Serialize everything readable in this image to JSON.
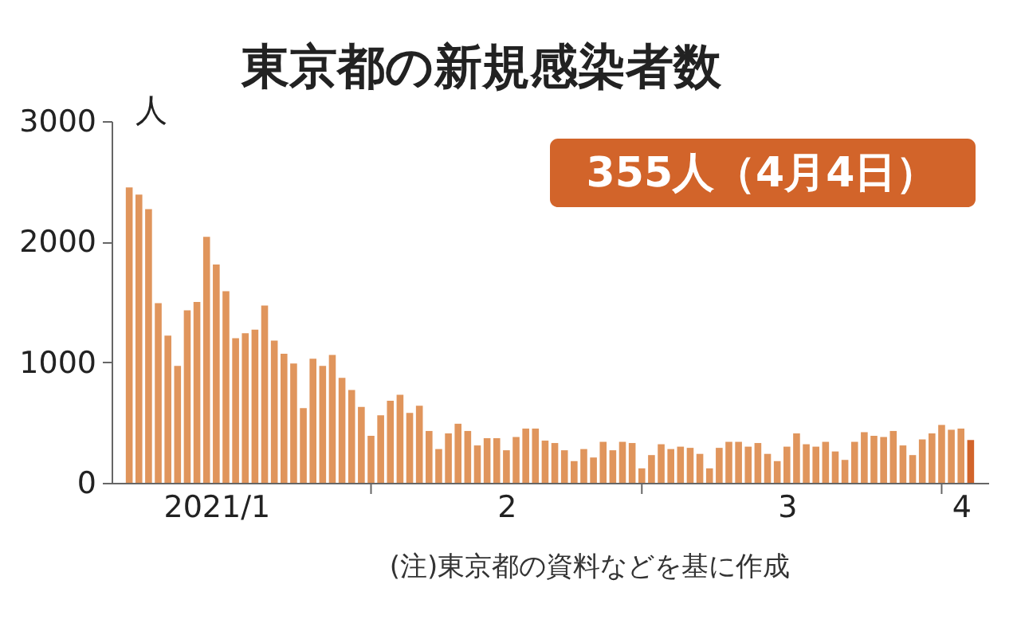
{
  "chart_data": {
    "type": "bar",
    "title": "東京都の新規感染者数",
    "ylabel": "人",
    "x": [
      "2021-01-07",
      "2021-01-08",
      "2021-01-09",
      "2021-01-10",
      "2021-01-11",
      "2021-01-12",
      "2021-01-13",
      "2021-01-14",
      "2021-01-15",
      "2021-01-16",
      "2021-01-17",
      "2021-01-18",
      "2021-01-19",
      "2021-01-20",
      "2021-01-21",
      "2021-01-22",
      "2021-01-23",
      "2021-01-24",
      "2021-01-25",
      "2021-01-26",
      "2021-01-27",
      "2021-01-28",
      "2021-01-29",
      "2021-01-30",
      "2021-01-31",
      "2021-02-01",
      "2021-02-02",
      "2021-02-03",
      "2021-02-04",
      "2021-02-05",
      "2021-02-06",
      "2021-02-07",
      "2021-02-08",
      "2021-02-09",
      "2021-02-10",
      "2021-02-11",
      "2021-02-12",
      "2021-02-13",
      "2021-02-14",
      "2021-02-15",
      "2021-02-16",
      "2021-02-17",
      "2021-02-18",
      "2021-02-19",
      "2021-02-20",
      "2021-02-21",
      "2021-02-22",
      "2021-02-23",
      "2021-02-24",
      "2021-02-25",
      "2021-02-26",
      "2021-02-27",
      "2021-02-28",
      "2021-03-01",
      "2021-03-02",
      "2021-03-03",
      "2021-03-04",
      "2021-03-05",
      "2021-03-06",
      "2021-03-07",
      "2021-03-08",
      "2021-03-09",
      "2021-03-10",
      "2021-03-11",
      "2021-03-12",
      "2021-03-13",
      "2021-03-14",
      "2021-03-15",
      "2021-03-16",
      "2021-03-17",
      "2021-03-18",
      "2021-03-19",
      "2021-03-20",
      "2021-03-21",
      "2021-03-22",
      "2021-03-23",
      "2021-03-24",
      "2021-03-25",
      "2021-03-26",
      "2021-03-27",
      "2021-03-28",
      "2021-03-29",
      "2021-03-30",
      "2021-03-31",
      "2021-04-01",
      "2021-04-02",
      "2021-04-03",
      "2021-04-04"
    ],
    "values": [
      2450,
      2390,
      2270,
      1490,
      1220,
      970,
      1430,
      1500,
      2040,
      1810,
      1590,
      1200,
      1240,
      1270,
      1470,
      1180,
      1070,
      990,
      620,
      1030,
      970,
      1060,
      870,
      770,
      630,
      390,
      560,
      680,
      730,
      580,
      640,
      430,
      280,
      410,
      490,
      430,
      310,
      370,
      370,
      270,
      380,
      450,
      450,
      350,
      330,
      270,
      180,
      280,
      210,
      340,
      270,
      340,
      330,
      120,
      230,
      320,
      280,
      300,
      290,
      240,
      120,
      290,
      340,
      340,
      300,
      330,
      240,
      180,
      300,
      410,
      320,
      300,
      340,
      260,
      190,
      340,
      420,
      390,
      380,
      430,
      310,
      230,
      360,
      410,
      480,
      440,
      450,
      355
    ],
    "colors": [
      "#e0955c",
      "#e0955c",
      "#e0955c",
      "#e0955c",
      "#e0955c",
      "#e0955c",
      "#e0955c",
      "#e0955c",
      "#e0955c",
      "#e0955c",
      "#e0955c",
      "#e0955c",
      "#e0955c",
      "#e0955c",
      "#e0955c",
      "#e0955c",
      "#e0955c",
      "#e0955c",
      "#e0955c",
      "#e0955c",
      "#e0955c",
      "#e0955c",
      "#e0955c",
      "#e0955c",
      "#e0955c",
      "#e0955c",
      "#e0955c",
      "#e0955c",
      "#e0955c",
      "#e0955c",
      "#e0955c",
      "#e0955c",
      "#e0955c",
      "#e0955c",
      "#e0955c",
      "#e0955c",
      "#e0955c",
      "#e0955c",
      "#e0955c",
      "#e0955c",
      "#e0955c",
      "#e0955c",
      "#e0955c",
      "#e0955c",
      "#e0955c",
      "#e0955c",
      "#e0955c",
      "#e0955c",
      "#e0955c",
      "#e0955c",
      "#e0955c",
      "#e0955c",
      "#e0955c",
      "#e0955c",
      "#e0955c",
      "#e0955c",
      "#e0955c",
      "#e0955c",
      "#e0955c",
      "#e0955c",
      "#e0955c",
      "#e0955c",
      "#e0955c",
      "#e0955c",
      "#e0955c",
      "#e0955c",
      "#e0955c",
      "#e0955c",
      "#e0955c",
      "#e0955c",
      "#e0955c",
      "#e0955c",
      "#e0955c",
      "#e0955c",
      "#e0955c",
      "#e0955c",
      "#e0955c",
      "#e0955c",
      "#e0955c",
      "#e0955c",
      "#e0955c",
      "#e0955c",
      "#e0955c",
      "#e0955c",
      "#e0955c",
      "#e0955c",
      "#e0955c",
      "#d2642a"
    ],
    "xlim": [
      "2021-01-06",
      "2021-04-05"
    ],
    "xticks": [
      {
        "value": "2021-02-01",
        "label": null
      },
      {
        "value": "2021-03-01",
        "label": null
      },
      {
        "value": "2021-04-01",
        "label": null
      },
      {
        "value": "2021-01-16",
        "label": "2021/1"
      },
      {
        "value": "2021-02-15",
        "label": "2"
      },
      {
        "value": "2021-03-16",
        "label": "3"
      },
      {
        "value": "2021-04-03",
        "label": "4"
      }
    ],
    "ylim": [
      0,
      3000
    ],
    "yticks": [
      0,
      1000,
      2000,
      3000
    ],
    "grid": false,
    "annotations": [
      "355人（4月4日）",
      "(注)東京都の資料などを基に作成"
    ]
  }
}
